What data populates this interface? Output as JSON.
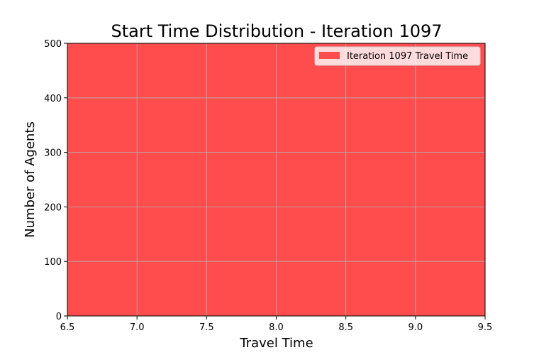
{
  "chart_data": {
    "type": "bar",
    "title": "Start Time Distribution - Iteration 1097",
    "xlabel": "Travel Time",
    "ylabel": "Number of Agents",
    "xlim": [
      6.5,
      9.5
    ],
    "ylim": [
      0,
      500
    ],
    "x_ticks": [
      "6.5",
      "7.0",
      "7.5",
      "8.0",
      "8.5",
      "9.0",
      "9.5"
    ],
    "y_ticks": [
      "0",
      "100",
      "200",
      "300",
      "400",
      "500"
    ],
    "grid": true,
    "legend_position": "top-right",
    "series": [
      {
        "name": "Iteration 1097 Travel Time",
        "color": "#ff4d4d",
        "bins": [
          {
            "x_start": 6.5,
            "x_end": 9.5,
            "value": 500
          }
        ]
      }
    ]
  }
}
